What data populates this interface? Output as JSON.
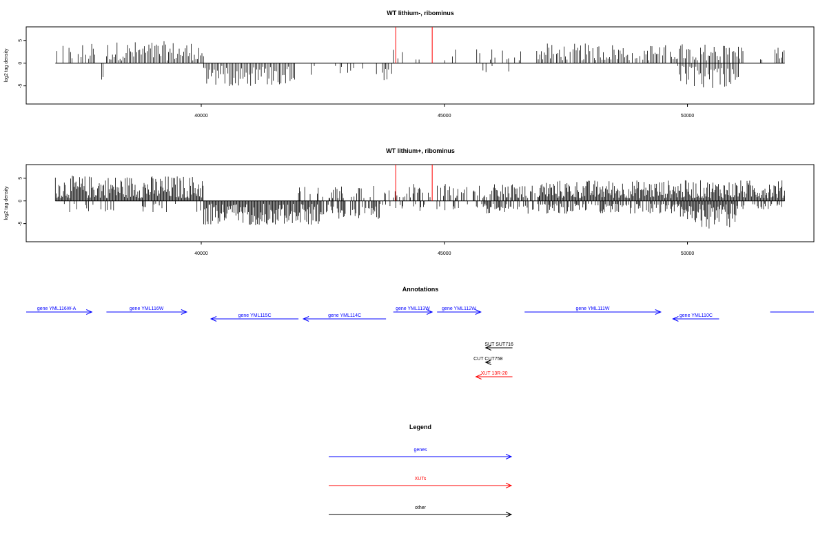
{
  "chart_data": {
    "type": "genome-track",
    "x_range": [
      36400,
      52600
    ],
    "panels": [
      {
        "title": "WT lithium-, ribominus",
        "ylabel": "log2 tag density",
        "yticks": [
          5,
          0,
          -5
        ],
        "ylim": [
          -9,
          8
        ],
        "xticks": [
          40000,
          45000,
          50000
        ],
        "dense": false,
        "markers": [
          44000,
          44750
        ],
        "pos_regions": [
          {
            "start": 37000,
            "end": 37850,
            "density": 0.55,
            "h": 3.0
          },
          {
            "start": 38050,
            "end": 40050,
            "density": 1.0,
            "h": 3.4
          },
          {
            "start": 43950,
            "end": 46600,
            "density": 0.28,
            "h": 2.2
          },
          {
            "start": 46900,
            "end": 51150,
            "density": 0.85,
            "h": 3.0
          },
          {
            "start": 51500,
            "end": 51550,
            "density": 1.0,
            "h": 2.1
          },
          {
            "start": 51800,
            "end": 52000,
            "density": 1.0,
            "h": 2.6
          }
        ],
        "neg_regions": [
          {
            "start": 37950,
            "end": 38000,
            "density": 1.0,
            "h": 2.8
          },
          {
            "start": 40050,
            "end": 41950,
            "density": 1.0,
            "h": 3.6
          },
          {
            "start": 42200,
            "end": 43950,
            "density": 0.25,
            "h": 2.8
          },
          {
            "start": 45700,
            "end": 46350,
            "density": 0.15,
            "h": 2.2
          },
          {
            "start": 49800,
            "end": 51050,
            "density": 1.0,
            "h": 4.0
          }
        ]
      },
      {
        "title": "WT lithium+, ribominus",
        "ylabel": "log2 tag density",
        "yticks": [
          5,
          0,
          -5
        ],
        "ylim": [
          -9,
          8
        ],
        "xticks": [
          40000,
          45000,
          50000
        ],
        "dense": true,
        "markers": [
          44000,
          44750
        ],
        "pos_regions": [
          {
            "start": 37000,
            "end": 40050,
            "density": 1.0,
            "h": 4.0
          },
          {
            "start": 42000,
            "end": 43900,
            "density": 0.25,
            "h": 2.2
          },
          {
            "start": 43950,
            "end": 47000,
            "density": 0.45,
            "h": 2.5
          },
          {
            "start": 46950,
            "end": 52000,
            "density": 1.0,
            "h": 3.2
          }
        ],
        "neg_regions": [
          {
            "start": 37000,
            "end": 40050,
            "density": 0.12,
            "h": 1.6
          },
          {
            "start": 40050,
            "end": 42500,
            "density": 1.0,
            "h": 3.8
          },
          {
            "start": 42500,
            "end": 43950,
            "density": 0.5,
            "h": 2.8
          },
          {
            "start": 44000,
            "end": 45800,
            "density": 0.25,
            "h": 1.4
          },
          {
            "start": 45800,
            "end": 47000,
            "density": 0.5,
            "h": 1.8
          },
          {
            "start": 47000,
            "end": 49800,
            "density": 0.6,
            "h": 1.8
          },
          {
            "start": 49800,
            "end": 51050,
            "density": 1.0,
            "h": 4.4
          },
          {
            "start": 51050,
            "end": 52000,
            "density": 0.3,
            "h": 1.2
          }
        ]
      }
    ],
    "annotations": {
      "title": "Annotations",
      "features": [
        {
          "label": "gene YML116W-A",
          "start": 36400,
          "end": 37650,
          "strand": "+",
          "kind": "gene",
          "row": 0
        },
        {
          "label": "",
          "start": 37650,
          "end": 37750,
          "strand": "+",
          "kind": "gene",
          "row": 0
        },
        {
          "label": "gene YML116W",
          "start": 38050,
          "end": 39700,
          "strand": "+",
          "kind": "gene",
          "row": 0
        },
        {
          "label": "gene YML115C",
          "start": 40200,
          "end": 42000,
          "strand": "-",
          "kind": "gene",
          "row": 1
        },
        {
          "label": "gene YML114C",
          "start": 42100,
          "end": 43800,
          "strand": "-",
          "kind": "gene",
          "row": 1
        },
        {
          "label": "gene YML113W",
          "start": 43950,
          "end": 44750,
          "strand": "+",
          "kind": "gene",
          "row": 0
        },
        {
          "label": "gene YML112W",
          "start": 44850,
          "end": 45750,
          "strand": "+",
          "kind": "gene",
          "row": 0
        },
        {
          "label": "gene YML111W",
          "start": 46650,
          "end": 49450,
          "strand": "+",
          "kind": "gene",
          "row": 0
        },
        {
          "label": "gene YML110C",
          "start": 49700,
          "end": 50650,
          "strand": "-",
          "kind": "gene",
          "row": 1
        },
        {
          "label": "",
          "start": 51700,
          "end": 52600,
          "strand": "+",
          "kind": "gene",
          "row": 0
        },
        {
          "label": "SUT SUT716",
          "start": 45850,
          "end": 46400,
          "strand": "-",
          "kind": "other",
          "row": 2
        },
        {
          "label": "CUT CUT758",
          "start": 45850,
          "end": 45950,
          "strand": "-",
          "kind": "other",
          "row": 3
        },
        {
          "label": "XUT 13R-20",
          "start": 45650,
          "end": 46400,
          "strand": "-",
          "kind": "xut",
          "row": 4
        }
      ]
    },
    "legend": {
      "title": "Legend",
      "items": [
        {
          "label": "genes",
          "kind": "gene"
        },
        {
          "label": "XUTs",
          "kind": "xut"
        },
        {
          "label": "other",
          "kind": "other"
        }
      ]
    },
    "colors": {
      "gene": "#0000ff",
      "xut": "#ff0000",
      "other": "#000000",
      "marker": "#ff0000"
    }
  }
}
